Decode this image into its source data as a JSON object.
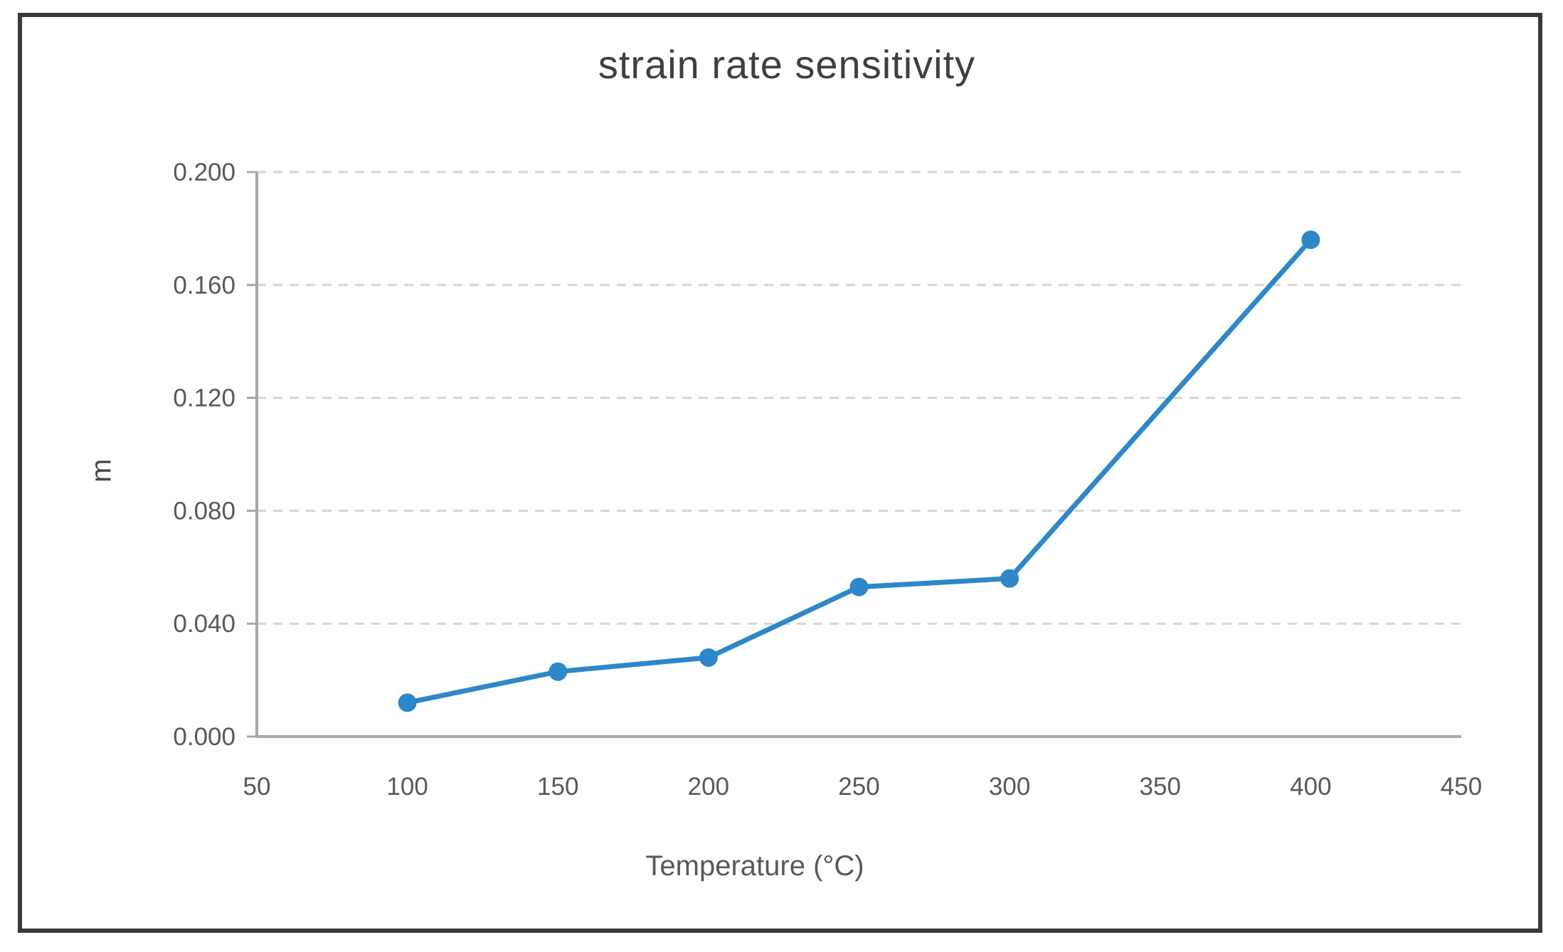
{
  "frame": {
    "border_color": "#3a3a3a",
    "background_color": "#ffffff"
  },
  "chart_data": {
    "type": "line",
    "title": "strain rate sensitivity",
    "xlabel": "Temperature (°C)",
    "ylabel": "m",
    "series": [
      {
        "name": "strain rate sensitivity",
        "x": [
          100,
          150,
          200,
          250,
          300,
          400
        ],
        "values": [
          0.012,
          0.023,
          0.028,
          0.053,
          0.056,
          0.176
        ]
      }
    ],
    "xlim": [
      50,
      450
    ],
    "ylim": [
      0.0,
      0.2
    ],
    "x_ticks": [
      50,
      100,
      150,
      200,
      250,
      300,
      350,
      400,
      450
    ],
    "y_ticks": [
      0.0,
      0.04,
      0.08,
      0.12,
      0.16,
      0.2
    ],
    "y_tick_labels": [
      "0.000",
      "0.040",
      "0.080",
      "0.120",
      "0.160",
      "0.200"
    ],
    "grid": "horizontal-dashed",
    "legend": "none",
    "marker": "circle",
    "style": {
      "line_color": "#2e87c8",
      "marker_color": "#2e87c8",
      "grid_color": "#d6d6d6",
      "axis_color": "#a8a8a8",
      "tick_text_color": "#595959",
      "title_color": "#3f3f3f"
    }
  }
}
